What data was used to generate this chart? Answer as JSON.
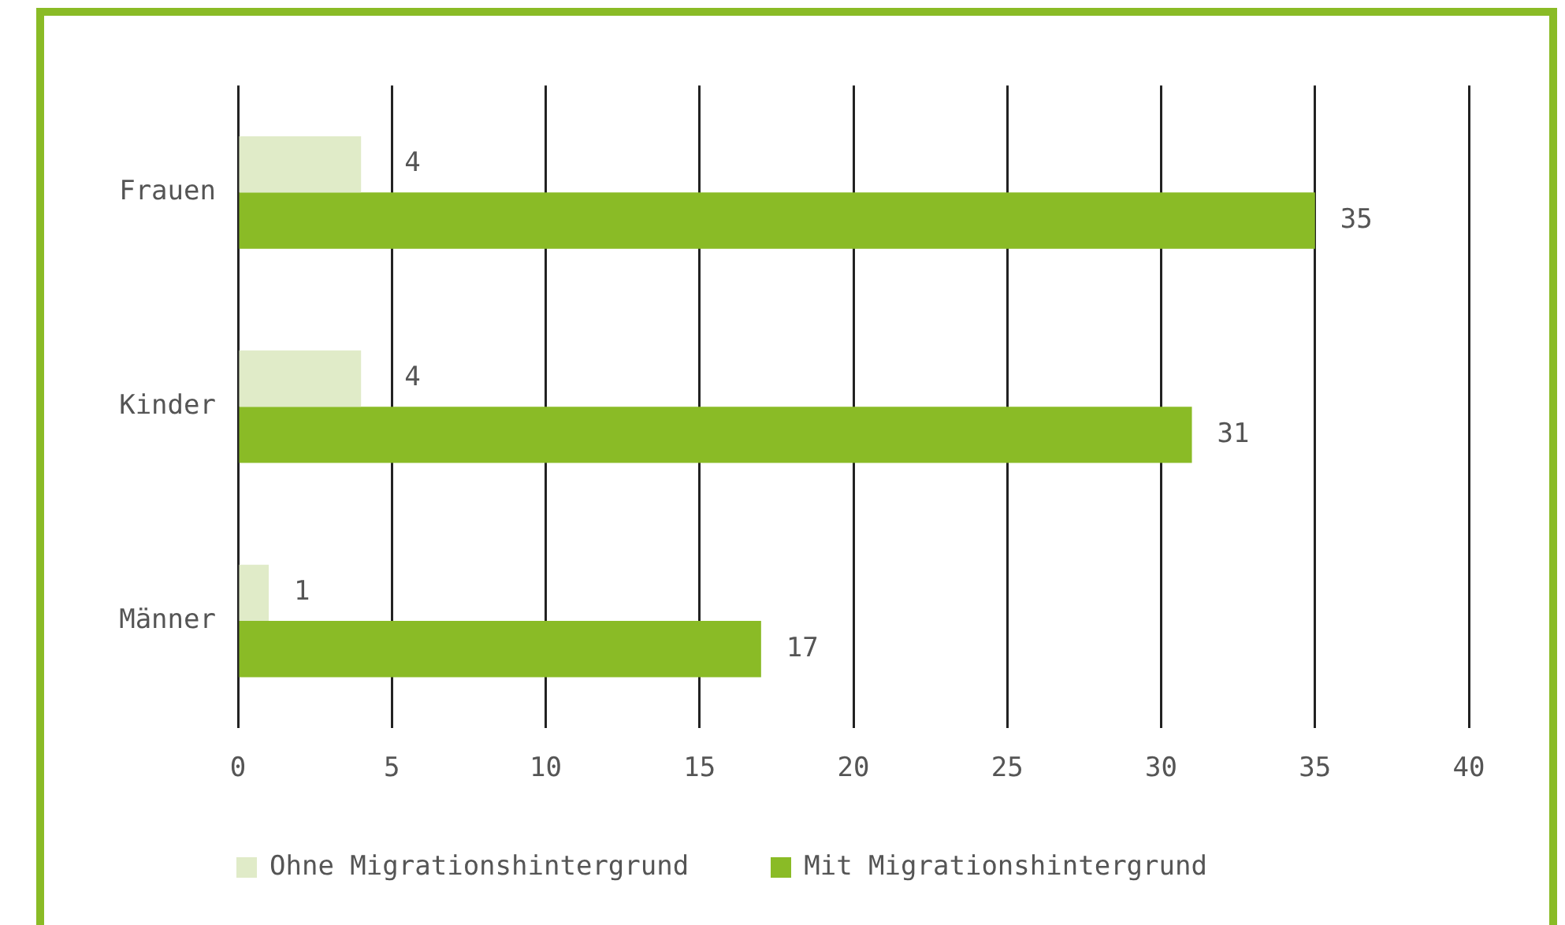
{
  "chart_data": {
    "type": "bar",
    "orientation": "horizontal",
    "categories": [
      "Frauen",
      "Kinder",
      "Männer"
    ],
    "series": [
      {
        "name": "Ohne Migrationshintergrund",
        "color": "#e0ebc8",
        "values": [
          4,
          4,
          1
        ]
      },
      {
        "name": "Mit Migrationshintergrund",
        "color": "#8abb26",
        "values": [
          35,
          31,
          17
        ]
      }
    ],
    "xlim": [
      0,
      40
    ],
    "xticks": [
      0,
      5,
      10,
      15,
      20,
      25,
      30,
      35,
      40
    ],
    "grid": "x",
    "legend": "bottom",
    "data_labels": true
  }
}
